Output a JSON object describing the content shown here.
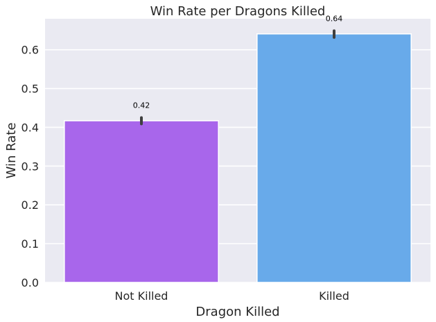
{
  "chart_data": {
    "type": "bar",
    "title": "Win Rate per Dragons Killed",
    "xlabel": "Dragon Killed",
    "ylabel": "Win Rate",
    "categories": [
      "Not Killed",
      "Killed"
    ],
    "values": [
      0.417,
      0.641
    ],
    "data_labels": [
      "0.42",
      "0.64"
    ],
    "error_bars": [
      [
        0.409,
        0.425
      ],
      [
        0.632,
        0.649
      ]
    ],
    "ylim": [
      0,
      0.68
    ],
    "yticks": [
      0.0,
      0.1,
      0.2,
      0.3,
      0.4,
      0.5,
      0.6
    ],
    "ytick_labels": [
      "0.0",
      "0.1",
      "0.2",
      "0.3",
      "0.4",
      "0.5",
      "0.6"
    ],
    "grid": true,
    "colors": [
      "#a866eb",
      "#68aaea"
    ],
    "background": "#eaeaf2"
  }
}
